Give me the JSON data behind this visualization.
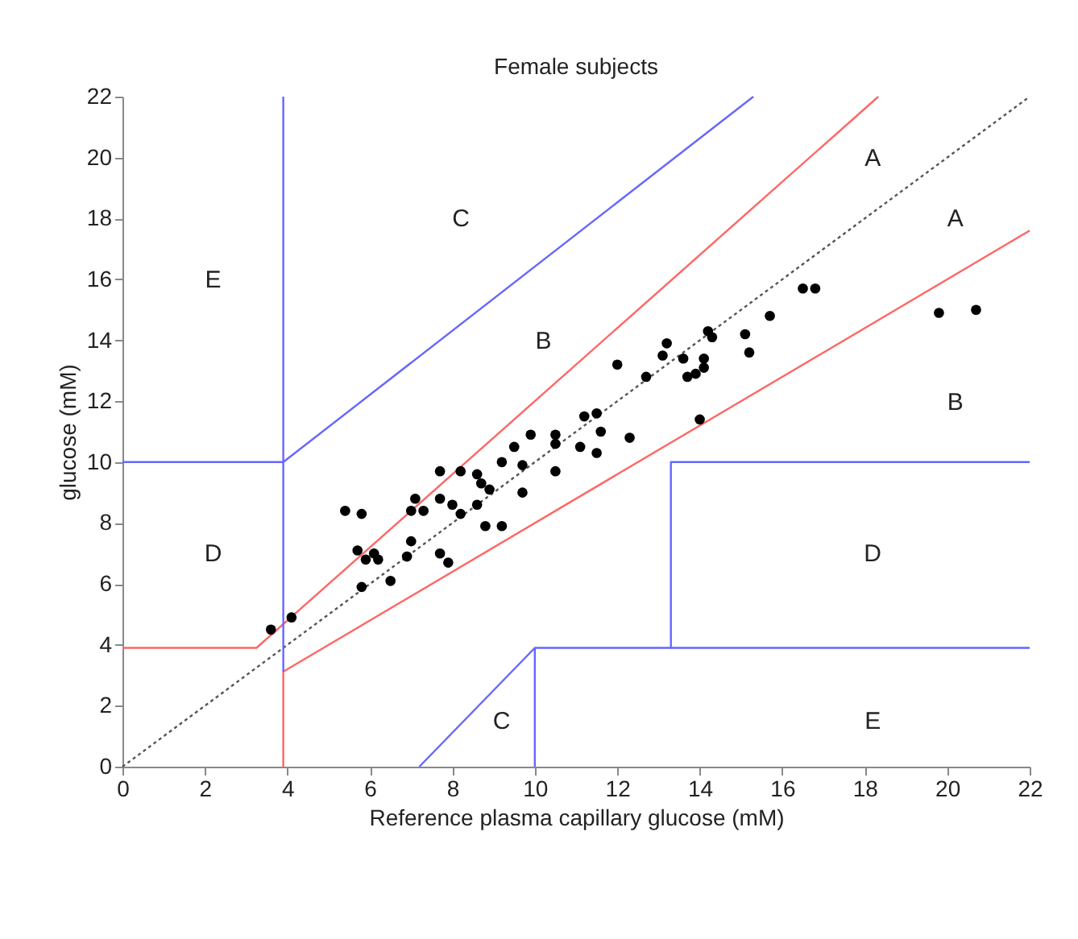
{
  "chart_data": {
    "type": "scatter",
    "title": "Female subjects",
    "xlabel": "Reference plasma capillary glucose (mM)",
    "ylabel": "glucose (mM)",
    "xlim": [
      0,
      22
    ],
    "ylim": [
      0,
      22
    ],
    "xticks": [
      0,
      2,
      4,
      6,
      8,
      10,
      12,
      14,
      16,
      18,
      20,
      22
    ],
    "yticks": [
      0,
      2,
      4,
      6,
      8,
      10,
      12,
      14,
      16,
      18,
      20,
      22
    ],
    "grid": false,
    "series": [
      {
        "type": "line",
        "color": "#555555",
        "line_style": "dotted",
        "x": [
          0,
          22
        ],
        "values": [
          0,
          22
        ]
      },
      {
        "type": "line",
        "color": "#ff6666",
        "x": [
          0,
          3.25,
          18.33
        ],
        "values": [
          3.9,
          3.9,
          22
        ]
      },
      {
        "type": "line",
        "color": "#ff6666",
        "x": [
          3.9,
          3.9,
          22
        ],
        "values": [
          0,
          3.12,
          17.6
        ]
      },
      {
        "type": "line",
        "color": "#6666ff",
        "x": [
          3.9,
          3.9
        ],
        "values": [
          3.12,
          22
        ]
      },
      {
        "type": "line",
        "color": "#6666ff",
        "x": [
          0,
          3.9,
          15.3
        ],
        "values": [
          10,
          10,
          22
        ]
      },
      {
        "type": "line",
        "color": "#6666ff",
        "x": [
          7.2,
          10,
          22
        ],
        "values": [
          0,
          3.9,
          3.9
        ]
      },
      {
        "type": "line",
        "color": "#6666ff",
        "x": [
          10,
          10
        ],
        "values": [
          0,
          3.9
        ]
      },
      {
        "type": "line",
        "color": "#6666ff",
        "x": [
          13.3,
          13.3,
          22
        ],
        "values": [
          3.9,
          10,
          10
        ]
      },
      {
        "color": "#000000",
        "marker": "circle",
        "x": [
          3.6,
          4.1,
          5.4,
          5.8,
          5.7,
          5.9,
          6.1,
          6.2,
          5.8,
          6.5,
          6.9,
          7.0,
          7.0,
          7.1,
          7.3,
          7.7,
          7.7,
          8.0,
          7.7,
          7.9,
          8.2,
          8.2,
          8.6,
          8.6,
          8.7,
          8.9,
          8.8,
          9.2,
          9.2,
          9.5,
          9.7,
          9.7,
          9.9,
          10.5,
          10.5,
          10.5,
          11.1,
          11.2,
          11.5,
          11.6,
          11.5,
          12.3,
          12.0,
          12.7,
          13.1,
          13.2,
          13.6,
          13.7,
          13.9,
          14.1,
          14.1,
          14.2,
          14.3,
          14.0,
          15.1,
          15.2,
          15.7,
          16.5,
          16.8,
          19.8,
          20.7
        ],
        "values": [
          4.5,
          4.9,
          8.4,
          8.3,
          7.1,
          6.8,
          7.0,
          6.8,
          5.9,
          6.1,
          6.9,
          7.4,
          8.4,
          8.8,
          8.4,
          9.7,
          8.8,
          8.6,
          7.0,
          6.7,
          9.7,
          8.3,
          8.6,
          9.6,
          9.3,
          9.1,
          7.9,
          7.9,
          10.0,
          10.5,
          9.9,
          9.0,
          10.9,
          9.7,
          10.9,
          10.6,
          10.5,
          11.5,
          11.6,
          11.0,
          10.3,
          10.8,
          13.2,
          12.8,
          13.5,
          13.9,
          13.4,
          12.8,
          12.9,
          13.1,
          13.4,
          14.3,
          14.1,
          11.4,
          14.2,
          13.6,
          14.8,
          15.7,
          15.7,
          14.9,
          15.0
        ]
      }
    ],
    "annotations": [
      "A",
      "A",
      "C",
      "E",
      "B",
      "B",
      "D",
      "D",
      "C",
      "E"
    ]
  }
}
